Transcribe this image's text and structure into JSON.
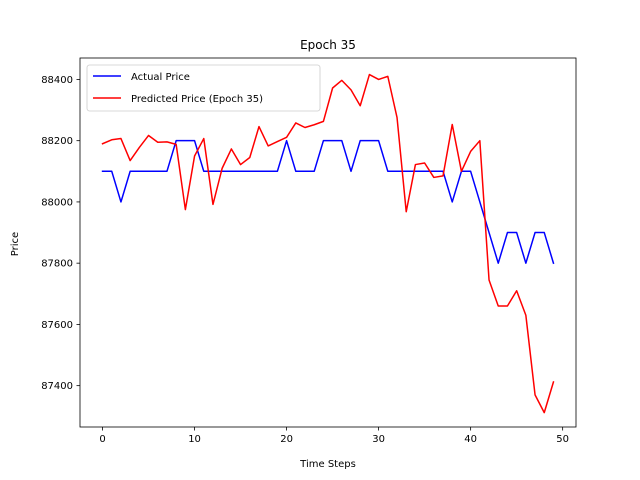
{
  "chart_data": {
    "type": "line",
    "title": "Epoch 35",
    "xlabel": "Time Steps",
    "ylabel": "Price",
    "xlim": [
      -2.45,
      51.45
    ],
    "ylim": [
      87265,
      88470
    ],
    "xticks": [
      0,
      10,
      20,
      30,
      40,
      50
    ],
    "yticks": [
      87400,
      87600,
      87800,
      88000,
      88200,
      88400
    ],
    "grid": false,
    "legend_position": "upper left",
    "series": [
      {
        "name": "Actual Price",
        "color": "#0000ff",
        "values": [
          88100,
          88100,
          88000,
          88100,
          88100,
          88100,
          88100,
          88100,
          88200,
          88200,
          88200,
          88100,
          88100,
          88100,
          88100,
          88100,
          88100,
          88100,
          88100,
          88100,
          88200,
          88100,
          88100,
          88100,
          88200,
          88200,
          88200,
          88100,
          88200,
          88200,
          88200,
          88100,
          88100,
          88100,
          88100,
          88100,
          88100,
          88100,
          88000,
          88100,
          88100,
          88000,
          87900,
          87800,
          87900,
          87900,
          87800,
          87900,
          87900,
          87800
        ]
      },
      {
        "name": "Predicted Price (Epoch 35)",
        "color": "#ff0000",
        "values": [
          88190,
          88203,
          88207,
          88135,
          88178,
          88217,
          88195,
          88196,
          88188,
          87975,
          88150,
          88207,
          87992,
          88110,
          88173,
          88122,
          88145,
          88246,
          88183,
          88197,
          88211,
          88258,
          88243,
          88252,
          88263,
          88372,
          88397,
          88366,
          88314,
          88416,
          88400,
          88410,
          88276,
          87968,
          88122,
          88127,
          88080,
          88085,
          88253,
          88100,
          88165,
          88200,
          87745,
          87660,
          87660,
          87710,
          87630,
          87370,
          87312,
          87412
        ]
      }
    ]
  }
}
